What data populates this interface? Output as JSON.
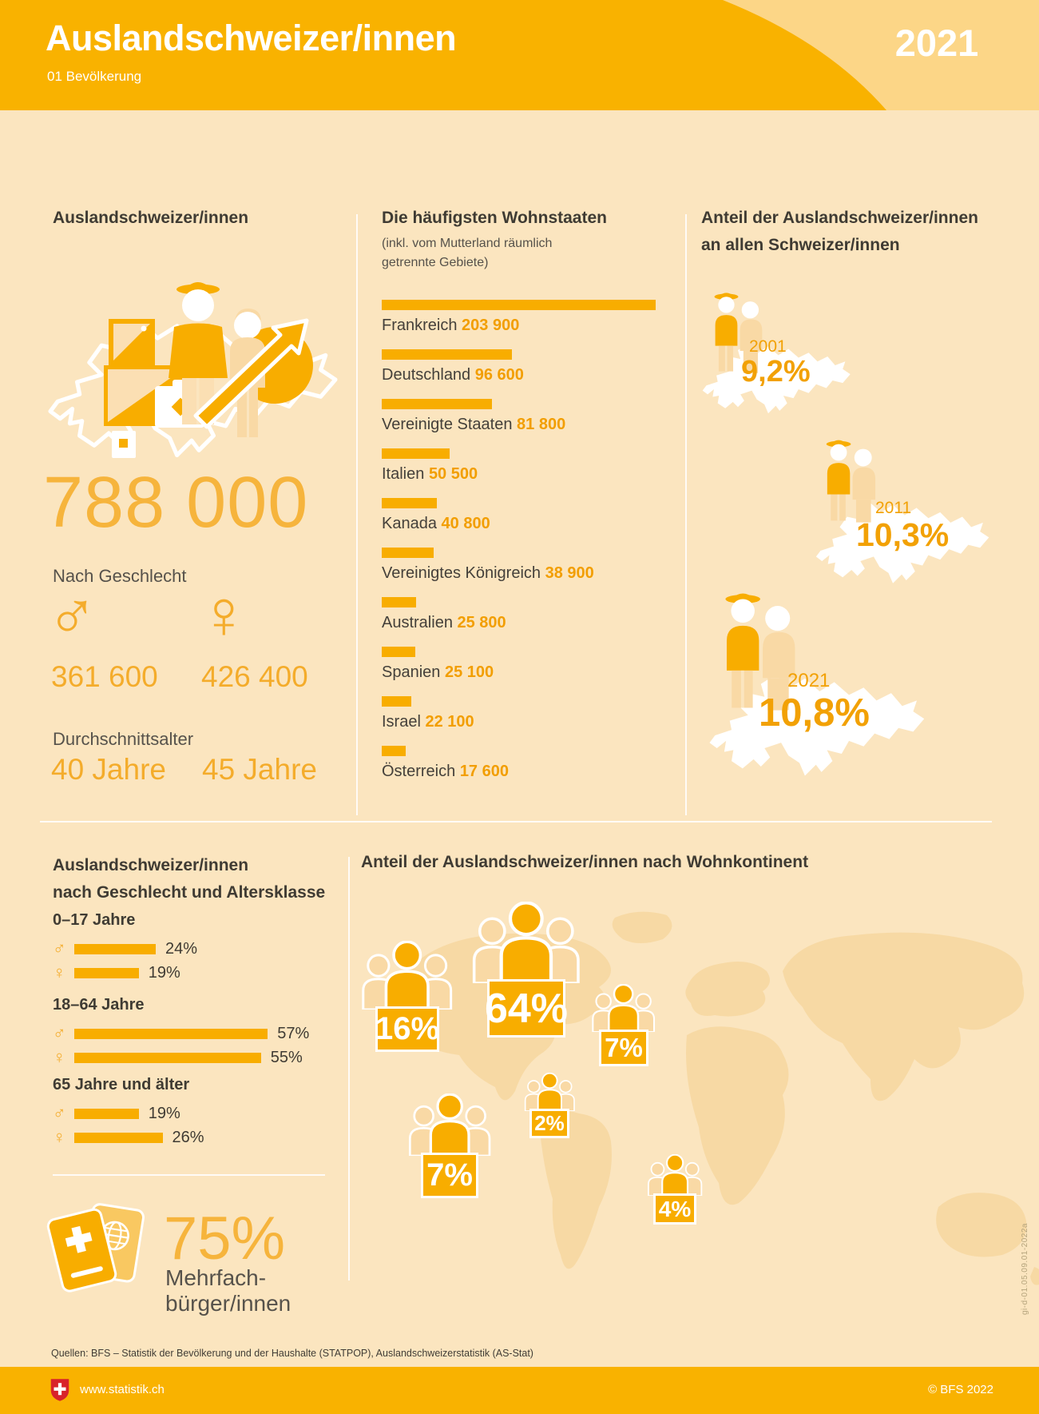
{
  "header": {
    "title": "Auslandschweizer/innen",
    "subtitle": "01 Bevölkerung",
    "year": "2021"
  },
  "left": {
    "heading": "Auslandschweizer/innen",
    "total": "788 000",
    "gender_label": "Nach Geschlecht",
    "male_symbol": "♂",
    "female_symbol": "♀",
    "male_total": "361 600",
    "female_total": "426 400",
    "age_label": "Durchschnittsalter",
    "male_age": "40 Jahre",
    "female_age": "45 Jahre"
  },
  "countries": {
    "heading": "Die häufigsten Wohnstaaten",
    "subheading_line1": "(inkl. vom Mutterland räumlich",
    "subheading_line2": "getrennte Gebiete)",
    "items": [
      {
        "name": "Frankreich",
        "display": "203 900",
        "value": 203900
      },
      {
        "name": "Deutschland",
        "display": "96 600",
        "value": 96600
      },
      {
        "name": "Vereinigte Staaten",
        "display": "81 800",
        "value": 81800
      },
      {
        "name": "Italien",
        "display": "50 500",
        "value": 50500
      },
      {
        "name": "Kanada",
        "display": "40 800",
        "value": 40800
      },
      {
        "name": "Vereinigtes Königreich",
        "display": "38 900",
        "value": 38900
      },
      {
        "name": "Australien",
        "display": "25 800",
        "value": 25800
      },
      {
        "name": "Spanien",
        "display": "25 100",
        "value": 25100
      },
      {
        "name": "Israel",
        "display": "22 100",
        "value": 22100
      },
      {
        "name": "Österreich",
        "display": "17 600",
        "value": 17600
      }
    ]
  },
  "share": {
    "heading_line1": "Anteil der Auslandschweizer/innen",
    "heading_line2": "an allen Schweizer/innen",
    "years": [
      {
        "year": "2001",
        "value": "9,2%"
      },
      {
        "year": "2011",
        "value": "10,3%"
      },
      {
        "year": "2021",
        "value": "10,8%"
      }
    ]
  },
  "age_groups": {
    "heading_line1": "Auslandschweizer/innen",
    "heading_line2": "nach Geschlecht und Altersklasse",
    "male_symbol": "♂",
    "female_symbol": "♀",
    "groups": [
      {
        "label": "0–17 Jahre",
        "male_display": "24%",
        "male": 24,
        "female_display": "19%",
        "female": 19
      },
      {
        "label": "18–64 Jahre",
        "male_display": "57%",
        "male": 57,
        "female_display": "55%",
        "female": 55
      },
      {
        "label": "65 Jahre und älter",
        "male_display": "19%",
        "male": 19,
        "female_display": "26%",
        "female": 26
      }
    ]
  },
  "multi_citizenship": {
    "value": "75%",
    "label_line1": "Mehrfach-",
    "label_line2": "bürger/innen"
  },
  "continents": {
    "heading": "Anteil der Auslandschweizer/innen nach Wohnkontinent",
    "items": [
      {
        "continent": "North America",
        "value": "16%"
      },
      {
        "continent": "Europe",
        "value": "64%"
      },
      {
        "continent": "Asia",
        "value": "7%"
      },
      {
        "continent": "Africa",
        "value": "2%"
      },
      {
        "continent": "South America",
        "value": "7%"
      },
      {
        "continent": "Oceania",
        "value": "4%"
      }
    ]
  },
  "footer": {
    "sources": "Quellen: BFS – Statistik der Bevölkerung und der Haushalte (STATPOP), Auslandschweizerstatistik (AS-Stat)",
    "website": "www.statistik.ch",
    "copyright": "© BFS 2022",
    "code": "gi-d-01.05.09.01-2022a"
  },
  "colors": {
    "header_bg": "#F9B200",
    "corner_light": "#FCD687",
    "page_bg": "#FBE5BF",
    "accent": "#F8AD00",
    "accent_text": "#F2A105",
    "number_light": "#F6B43C",
    "map_land": "#F7D9A4",
    "swiss_red": "#D8232A"
  },
  "chart_data": [
    {
      "type": "bar",
      "title": "Die häufigsten Wohnstaaten (inkl. vom Mutterland räumlich getrennte Gebiete)",
      "orientation": "horizontal",
      "categories": [
        "Frankreich",
        "Deutschland",
        "Vereinigte Staaten",
        "Italien",
        "Kanada",
        "Vereinigtes Königreich",
        "Australien",
        "Spanien",
        "Israel",
        "Österreich"
      ],
      "values": [
        203900,
        96600,
        81800,
        50500,
        40800,
        38900,
        25800,
        25100,
        22100,
        17600
      ],
      "value_labels": [
        "203 900",
        "96 600",
        "81 800",
        "50 500",
        "40 800",
        "38 900",
        "25 800",
        "25 100",
        "22 100",
        "17 600"
      ],
      "xlabel": "",
      "ylabel": "",
      "legend": false
    },
    {
      "type": "bar",
      "title": "Anteil der Auslandschweizer/innen an allen Schweizer/innen",
      "categories": [
        "2001",
        "2011",
        "2021"
      ],
      "values": [
        9.2,
        10.3,
        10.8
      ],
      "value_labels": [
        "9,2%",
        "10,3%",
        "10,8%"
      ],
      "unit": "%"
    },
    {
      "type": "bar",
      "title": "Auslandschweizer/innen nach Geschlecht und Altersklasse",
      "orientation": "horizontal",
      "categories": [
        "0–17 Jahre",
        "18–64 Jahre",
        "65 Jahre und älter"
      ],
      "series": [
        {
          "name": "männlich (♂)",
          "values": [
            24,
            57,
            19
          ]
        },
        {
          "name": "weiblich (♀)",
          "values": [
            19,
            55,
            26
          ]
        }
      ],
      "unit": "%"
    },
    {
      "type": "bar",
      "title": "Anteil der Auslandschweizer/innen nach Wohnkontinent",
      "categories": [
        "North America",
        "Europe",
        "Asia",
        "Africa",
        "South America",
        "Oceania"
      ],
      "values": [
        16,
        64,
        7,
        2,
        7,
        4
      ],
      "unit": "%"
    },
    {
      "type": "table",
      "title": "Auslandschweizer/innen Kennzahlen 2021",
      "rows": [
        {
          "label": "Total",
          "value": 788000
        },
        {
          "label": "Männer",
          "value": 361600
        },
        {
          "label": "Frauen",
          "value": 426400
        },
        {
          "label": "Durchschnittsalter Männer (Jahre)",
          "value": 40
        },
        {
          "label": "Durchschnittsalter Frauen (Jahre)",
          "value": 45
        },
        {
          "label": "Mehrfachbürger/innen (%)",
          "value": 75
        }
      ]
    }
  ]
}
